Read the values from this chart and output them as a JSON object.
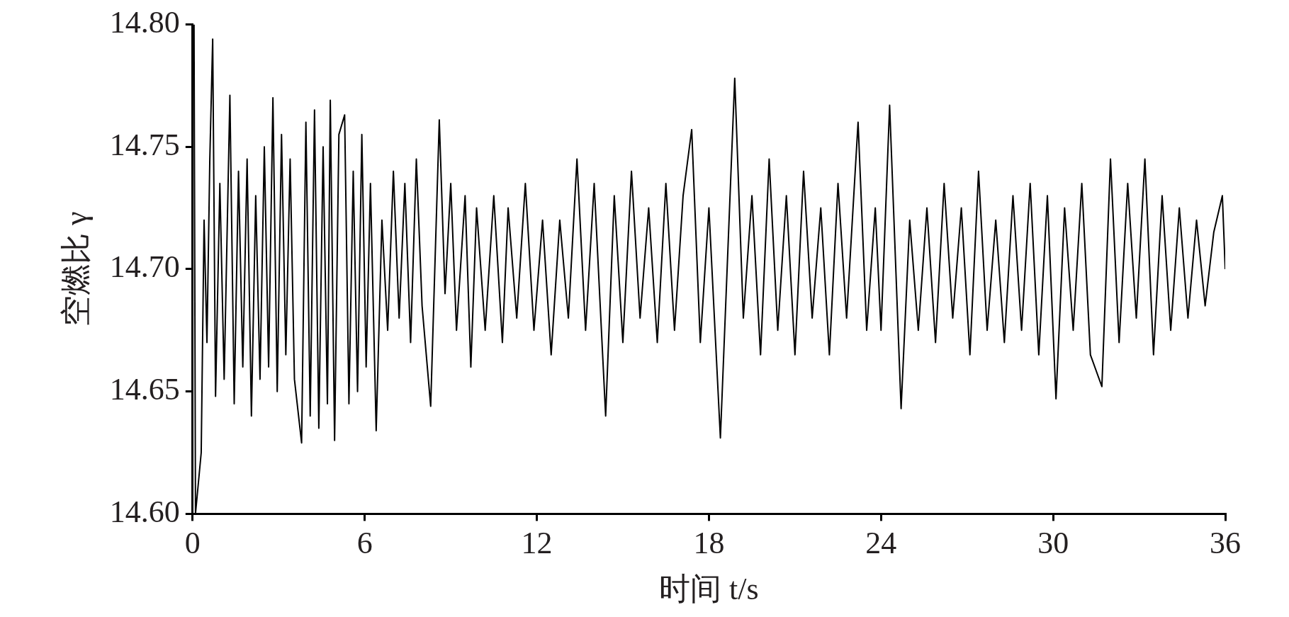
{
  "chart_data": {
    "type": "line",
    "xlabel": "时间 t/s",
    "ylabel": "空燃比 γ",
    "color": "#000000",
    "grid": false,
    "legend": false,
    "marker": "none",
    "line_style": "solid",
    "xlim": [
      0,
      36
    ],
    "xticks": [
      0,
      6,
      12,
      18,
      24,
      30,
      36
    ],
    "ylim": [
      14.6,
      14.8
    ],
    "yticks": [
      {
        "value": 14.6,
        "label": "14.60"
      },
      {
        "value": 14.65,
        "label": "14.65"
      },
      {
        "value": 14.7,
        "label": "14.70"
      },
      {
        "value": 14.75,
        "label": "14.75"
      },
      {
        "value": 14.8,
        "label": "14.80"
      }
    ],
    "x": [
      0.05,
      0.1,
      0.3,
      0.4,
      0.5,
      0.6,
      0.7,
      0.8,
      0.95,
      1.1,
      1.3,
      1.45,
      1.6,
      1.75,
      1.9,
      2.05,
      2.2,
      2.35,
      2.5,
      2.65,
      2.8,
      2.95,
      3.1,
      3.25,
      3.4,
      3.55,
      3.8,
      3.95,
      4.1,
      4.25,
      4.4,
      4.55,
      4.7,
      4.8,
      4.95,
      5.1,
      5.3,
      5.45,
      5.6,
      5.75,
      5.9,
      6.05,
      6.2,
      6.4,
      6.6,
      6.8,
      7.0,
      7.2,
      7.4,
      7.6,
      7.8,
      8.0,
      8.3,
      8.6,
      8.8,
      9.0,
      9.2,
      9.5,
      9.7,
      9.9,
      10.2,
      10.5,
      10.8,
      11.0,
      11.3,
      11.6,
      11.9,
      12.2,
      12.5,
      12.8,
      13.1,
      13.4,
      13.7,
      14.0,
      14.4,
      14.7,
      15.0,
      15.3,
      15.6,
      15.9,
      16.2,
      16.5,
      16.8,
      17.1,
      17.4,
      17.7,
      18.0,
      18.4,
      18.9,
      19.2,
      19.5,
      19.8,
      20.1,
      20.4,
      20.7,
      21.0,
      21.3,
      21.6,
      21.9,
      22.2,
      22.5,
      22.8,
      23.2,
      23.5,
      23.8,
      24.0,
      24.3,
      24.7,
      25.0,
      25.3,
      25.6,
      25.9,
      26.2,
      26.5,
      26.8,
      27.1,
      27.4,
      27.7,
      28.0,
      28.3,
      28.6,
      28.9,
      29.2,
      29.5,
      29.8,
      30.1,
      30.4,
      30.7,
      31.0,
      31.3,
      31.7,
      32.0,
      32.3,
      32.6,
      32.9,
      33.2,
      33.5,
      33.8,
      34.1,
      34.4,
      34.7,
      35.0,
      35.3,
      35.6,
      35.9,
      36.0
    ],
    "values": [
      14.8,
      14.6,
      14.625,
      14.72,
      14.67,
      14.745,
      14.794,
      14.648,
      14.735,
      14.655,
      14.771,
      14.645,
      14.74,
      14.66,
      14.745,
      14.64,
      14.73,
      14.655,
      14.75,
      14.66,
      14.77,
      14.65,
      14.755,
      14.665,
      14.745,
      14.655,
      14.629,
      14.76,
      14.64,
      14.765,
      14.635,
      14.75,
      14.645,
      14.769,
      14.63,
      14.755,
      14.763,
      14.645,
      14.74,
      14.65,
      14.755,
      14.66,
      14.735,
      14.634,
      14.72,
      14.675,
      14.74,
      14.68,
      14.735,
      14.67,
      14.745,
      14.685,
      14.644,
      14.761,
      14.69,
      14.735,
      14.675,
      14.73,
      14.66,
      14.725,
      14.675,
      14.73,
      14.67,
      14.725,
      14.68,
      14.735,
      14.675,
      14.72,
      14.665,
      14.72,
      14.68,
      14.745,
      14.675,
      14.735,
      14.64,
      14.73,
      14.67,
      14.74,
      14.68,
      14.725,
      14.67,
      14.735,
      14.675,
      14.73,
      14.757,
      14.67,
      14.725,
      14.631,
      14.778,
      14.68,
      14.73,
      14.665,
      14.745,
      14.675,
      14.73,
      14.665,
      14.74,
      14.68,
      14.725,
      14.665,
      14.735,
      14.68,
      14.76,
      14.675,
      14.725,
      14.675,
      14.767,
      14.643,
      14.72,
      14.675,
      14.725,
      14.67,
      14.735,
      14.68,
      14.725,
      14.665,
      14.74,
      14.675,
      14.72,
      14.67,
      14.73,
      14.675,
      14.735,
      14.665,
      14.73,
      14.647,
      14.725,
      14.675,
      14.735,
      14.665,
      14.652,
      14.745,
      14.67,
      14.735,
      14.68,
      14.745,
      14.665,
      14.73,
      14.675,
      14.725,
      14.68,
      14.72,
      14.685,
      14.715,
      14.73,
      14.7
    ]
  }
}
